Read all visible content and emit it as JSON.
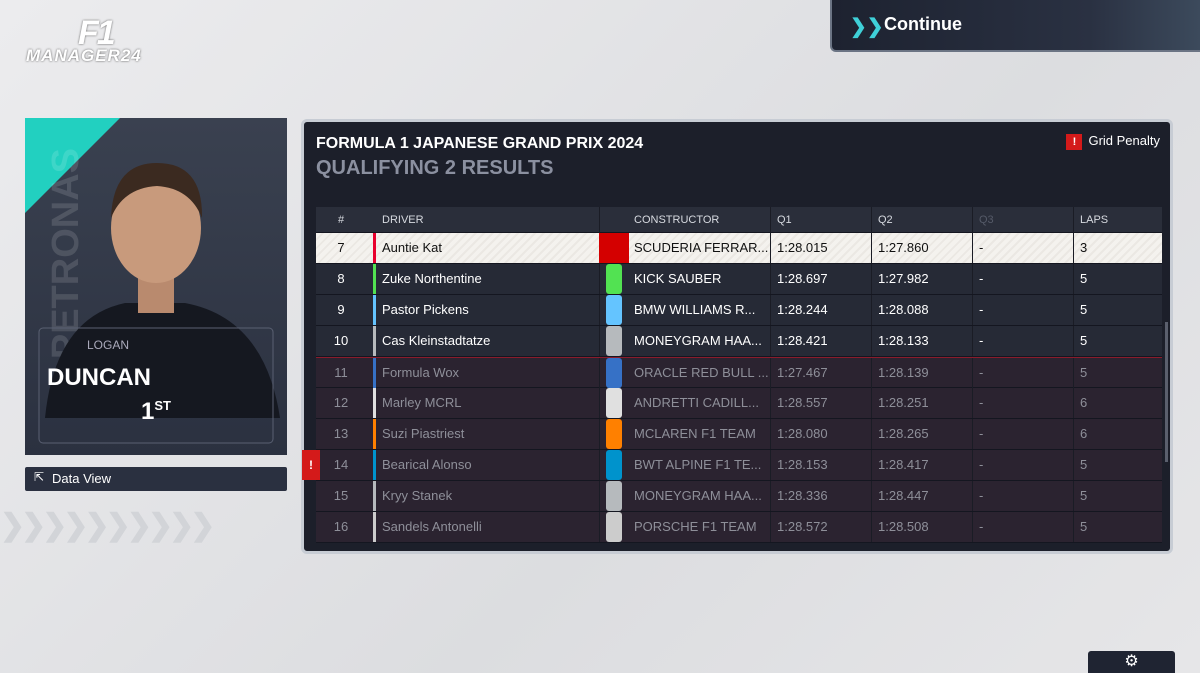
{
  "logo": {
    "brand": "F1",
    "subtitle": "MANAGER24"
  },
  "continue_button": "Continue",
  "driver_card": {
    "sponsor": "PETRONAS",
    "first_name": "LOGAN",
    "last_name": "DUNCAN",
    "position": "1",
    "position_suffix": "ST"
  },
  "data_view_button": "Data View",
  "results": {
    "title": "FORMULA 1 JAPANESE GRAND PRIX 2024",
    "subtitle": "QUALIFYING 2 RESULTS",
    "legend": "Grid Penalty",
    "columns": [
      "#",
      "DRIVER",
      "CONSTRUCTOR",
      "Q1",
      "Q2",
      "Q3",
      "LAPS"
    ],
    "rows": [
      {
        "position": 7,
        "driver": "Auntie Kat",
        "color": "#e8002d",
        "constructor": "SCUDERIA FERRAR...",
        "q1": "1:28.015",
        "q2": "1:27.860",
        "q3": "-",
        "laps": 3
      },
      {
        "position": 8,
        "driver": "Zuke Northentine",
        "color": "#52e252",
        "constructor": "KICK SAUBER",
        "q1": "1:28.697",
        "q2": "1:27.982",
        "q3": "-",
        "laps": 5
      },
      {
        "position": 9,
        "driver": "Pastor Pickens",
        "color": "#64c4ff",
        "constructor": "BMW WILLIAMS R...",
        "q1": "1:28.244",
        "q2": "1:28.088",
        "q3": "-",
        "laps": 5
      },
      {
        "position": 10,
        "driver": "Cas Kleinstadtatze",
        "color": "#b6babd",
        "constructor": "MONEYGRAM HAA...",
        "q1": "1:28.421",
        "q2": "1:28.133",
        "q3": "-",
        "laps": 5
      }
    ],
    "eliminated_rows": [
      {
        "position": 11,
        "driver": "Formula Wox",
        "color": "#3671c6",
        "constructor": "ORACLE RED BULL ...",
        "q1": "1:27.467",
        "q2": "1:28.139",
        "q3": "-",
        "laps": 5
      },
      {
        "position": 12,
        "driver": "Marley MCRL",
        "color": "#e0e0e0",
        "constructor": "ANDRETTI CADILL...",
        "q1": "1:28.557",
        "q2": "1:28.251",
        "q3": "-",
        "laps": 6
      },
      {
        "position": 13,
        "driver": "Suzi Piastriest",
        "color": "#ff8000",
        "constructor": "MCLAREN F1 TEAM",
        "q1": "1:28.080",
        "q2": "1:28.265",
        "q3": "-",
        "laps": 6
      },
      {
        "position": 14,
        "driver": "Bearical Alonso",
        "color": "#0093cc",
        "constructor": "BWT ALPINE F1 TE...",
        "q1": "1:28.153",
        "q2": "1:28.417",
        "q3": "-",
        "laps": 5,
        "grid_penalty": true
      },
      {
        "position": 15,
        "driver": "Kryy Stanek",
        "color": "#b6babd",
        "constructor": "MONEYGRAM HAA...",
        "q1": "1:28.336",
        "q2": "1:28.447",
        "q3": "-",
        "laps": 5
      },
      {
        "position": 16,
        "driver": "Sandels Antonelli",
        "color": "#cccccc",
        "constructor": "PORSCHE F1 TEAM",
        "q1": "1:28.572",
        "q2": "1:28.508",
        "q3": "-",
        "laps": 5
      }
    ]
  }
}
